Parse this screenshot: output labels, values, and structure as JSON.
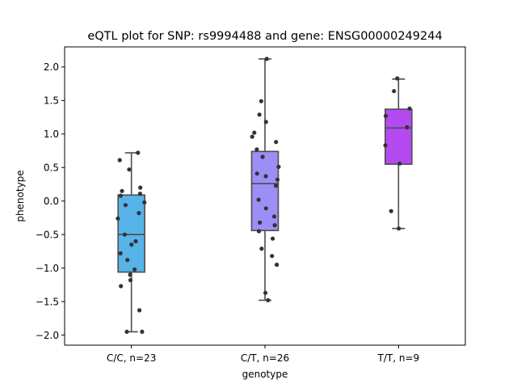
{
  "chart_data": {
    "type": "box",
    "title": "eQTL plot for SNP: rs9994488 and gene: ENSG00000249244",
    "xlabel": "genotype",
    "ylabel": "phenotype",
    "ylim": [
      -2.15,
      2.3
    ],
    "yticks": [
      {
        "value": 2.0,
        "label": "2.0"
      },
      {
        "value": 1.5,
        "label": "1.5"
      },
      {
        "value": 1.0,
        "label": "1.0"
      },
      {
        "value": 0.5,
        "label": "0.5"
      },
      {
        "value": 0.0,
        "label": "0.0"
      },
      {
        "value": -0.5,
        "label": "−0.5"
      },
      {
        "value": -1.0,
        "label": "−1.0"
      },
      {
        "value": -1.5,
        "label": "−1.5"
      },
      {
        "value": -2.0,
        "label": "−2.0"
      }
    ],
    "grid": false,
    "categories": [
      "C/C, n=23",
      "C/T, n=26",
      "T/T, n=9"
    ],
    "groups": [
      {
        "label": "C/C, n=23",
        "color": "#56b4e9",
        "q1": -1.06,
        "median": -0.5,
        "q3": 0.09,
        "whisker_low": -1.95,
        "whisker_high": 0.72,
        "points": [
          0.72,
          0.61,
          0.47,
          0.2,
          0.15,
          0.11,
          0.08,
          -0.02,
          -0.06,
          -0.18,
          -0.26,
          -0.5,
          -0.6,
          -0.65,
          -0.78,
          -0.88,
          -1.02,
          -1.1,
          -1.18,
          -1.27,
          -1.63,
          -1.95,
          -1.95
        ]
      },
      {
        "label": "C/T, n=26",
        "color": "#9b8ff5",
        "q1": -0.44,
        "median": 0.26,
        "q3": 0.74,
        "whisker_low": -1.48,
        "whisker_high": 2.12,
        "points": [
          2.12,
          1.49,
          1.29,
          1.18,
          1.02,
          0.96,
          0.88,
          0.77,
          0.66,
          0.51,
          0.41,
          0.37,
          0.32,
          0.23,
          0.02,
          -0.11,
          -0.23,
          -0.32,
          -0.36,
          -0.45,
          -0.56,
          -0.71,
          -0.82,
          -0.95,
          -1.37,
          -1.48
        ]
      },
      {
        "label": "T/T, n=9",
        "color": "#b44af0",
        "q1": 0.55,
        "median": 1.09,
        "q3": 1.37,
        "whisker_low": -0.41,
        "whisker_high": 1.82,
        "points": [
          1.83,
          1.64,
          1.38,
          1.27,
          1.1,
          0.83,
          0.56,
          -0.15,
          -0.41
        ]
      }
    ],
    "point_color": "#333333"
  }
}
